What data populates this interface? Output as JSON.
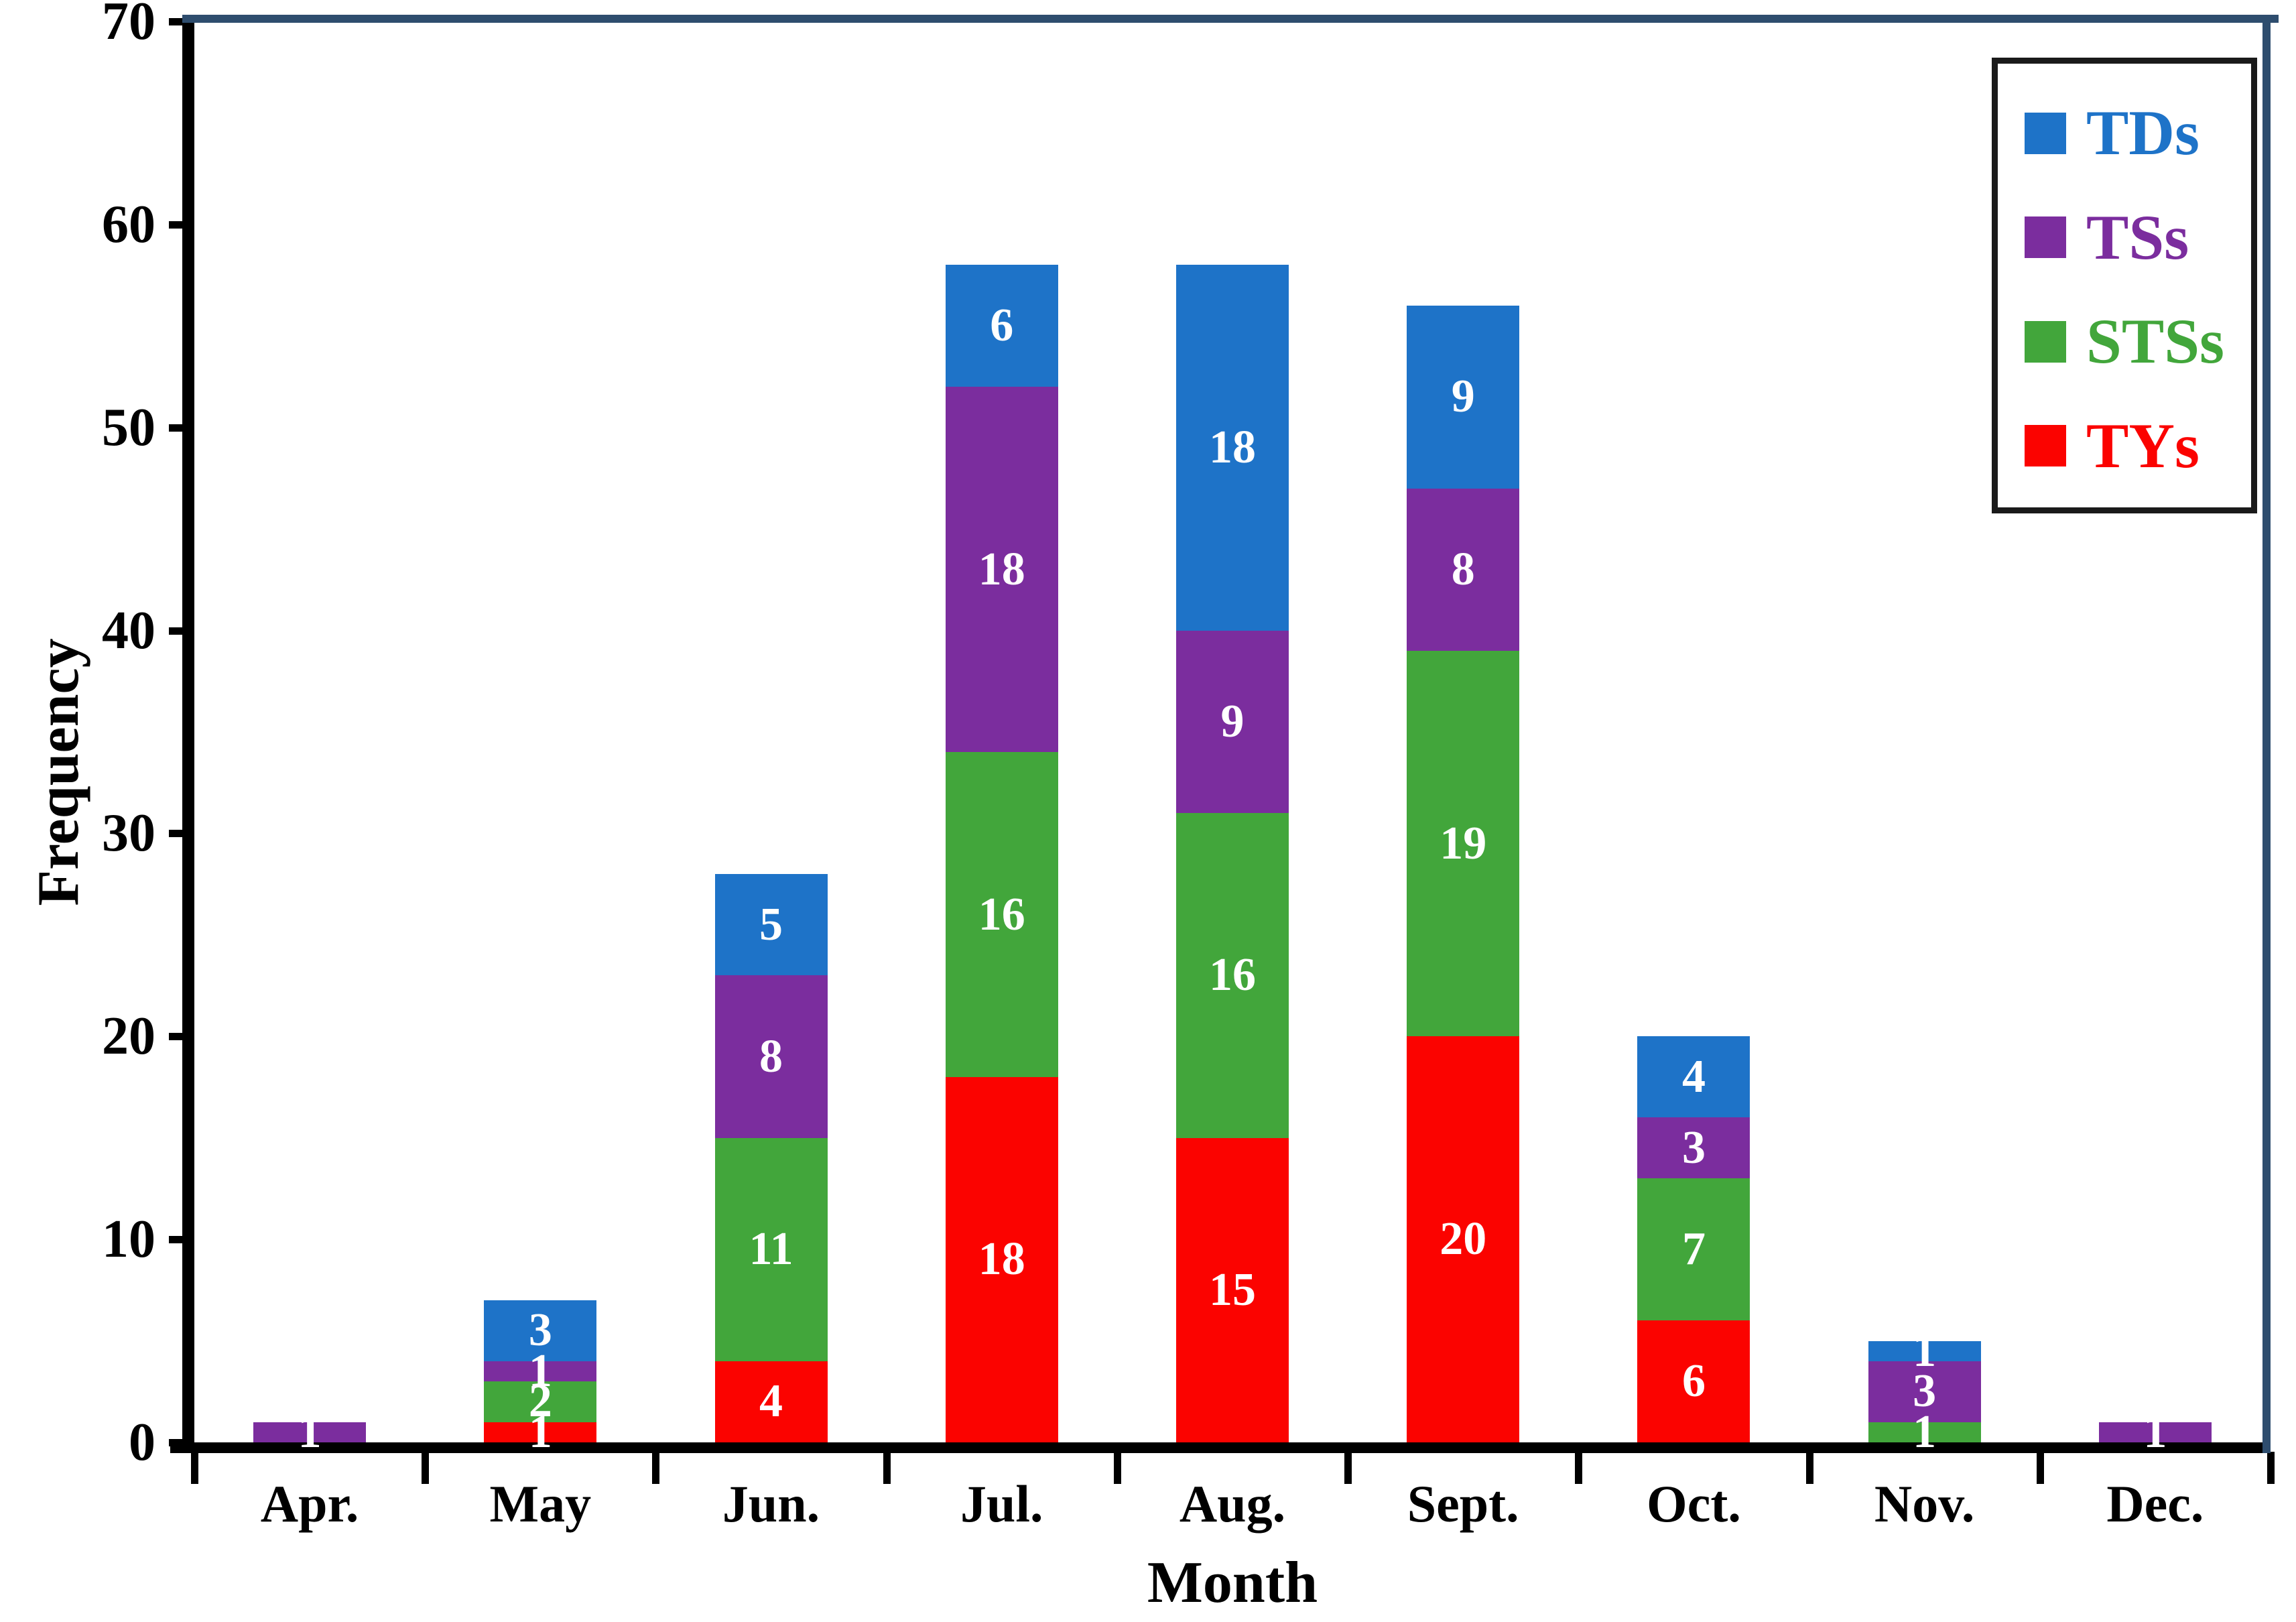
{
  "frame": {
    "background": "#FFFFFF",
    "border_color": "#2E4D6E",
    "axis_color": "#000000",
    "bar_label_color": "#FFFFFF"
  },
  "chart_data": {
    "type": "bar",
    "stacked": true,
    "title": "",
    "xlabel": "Month",
    "ylabel": "Frequency",
    "ylim": [
      0,
      70
    ],
    "yticks": [
      0,
      10,
      20,
      30,
      40,
      50,
      60,
      70
    ],
    "grid": false,
    "legend_position": "top-right",
    "categories": [
      "Apr.",
      "May",
      "Jun.",
      "Jul.",
      "Aug.",
      "Sept.",
      "Oct.",
      "Nov.",
      "Dec."
    ],
    "series": [
      {
        "name": "TYs",
        "color": "#FB0300",
        "values": [
          0,
          1,
          4,
          18,
          15,
          20,
          6,
          0,
          0
        ]
      },
      {
        "name": "STSs",
        "color": "#42A63B",
        "values": [
          0,
          2,
          11,
          16,
          16,
          19,
          7,
          1,
          0
        ]
      },
      {
        "name": "TSs",
        "color": "#7B2D9E",
        "values": [
          1,
          1,
          8,
          18,
          9,
          8,
          3,
          3,
          1
        ]
      },
      {
        "name": "TDs",
        "color": "#1E73C8",
        "values": [
          0,
          3,
          5,
          6,
          18,
          9,
          4,
          1,
          0
        ]
      }
    ],
    "legend": [
      {
        "label": "TDs",
        "color": "#1E73C8"
      },
      {
        "label": "TSs",
        "color": "#7B2D9E"
      },
      {
        "label": "STSs",
        "color": "#42A63B"
      },
      {
        "label": "TYs",
        "color": "#FB0300"
      }
    ]
  }
}
